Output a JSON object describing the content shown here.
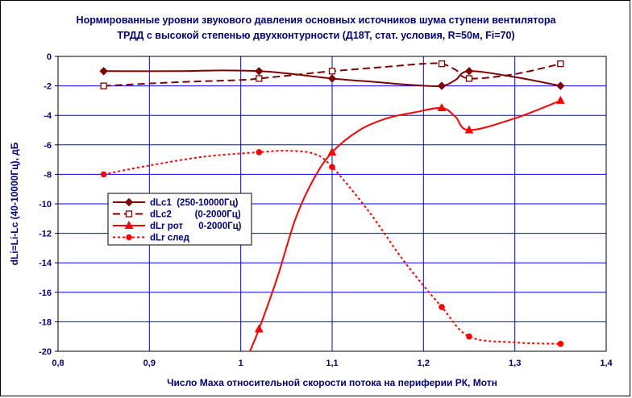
{
  "chart_data": {
    "type": "line",
    "title": "Нормированные уровни звукового давления основных источников шума ступени вентилятора",
    "subtitle": "ТРДД с высокой степенью двухконтурности  (Д18Т, стат. условия, R=50м, Fi=70)",
    "xlabel": "Число Маха относительной скорости потока на периферии РК, Мотн",
    "ylabel": "dLi=Li-Lc (40-10000Гц), дБ",
    "xlim": [
      0.8,
      1.4
    ],
    "ylim": [
      -20,
      0
    ],
    "x_ticks": [
      "0,8",
      "0,9",
      "1",
      "1,1",
      "1,2",
      "1,3",
      "1,4"
    ],
    "y_ticks": [
      "0",
      "-2",
      "-4",
      "-6",
      "-8",
      "-10",
      "-12",
      "-14",
      "-16",
      "-18",
      "-20"
    ],
    "grid": true,
    "legend_position": "middle-left",
    "series": [
      {
        "name": "dLc1  (250-10000Гц)",
        "color": "#800000",
        "line": "solid",
        "marker": "diamond",
        "markers": [
          [
            0.85,
            -1.0
          ],
          [
            1.02,
            -1.0
          ],
          [
            1.1,
            -1.5
          ],
          [
            1.22,
            -2.0
          ],
          [
            1.25,
            -1.0
          ],
          [
            1.35,
            -2.0
          ]
        ],
        "curve": [
          [
            0.85,
            -1.0
          ],
          [
            0.93,
            -1.0
          ],
          [
            0.98,
            -0.95
          ],
          [
            1.02,
            -1.0
          ],
          [
            1.05,
            -1.15
          ],
          [
            1.1,
            -1.5
          ],
          [
            1.15,
            -1.75
          ],
          [
            1.19,
            -1.95
          ],
          [
            1.22,
            -2.0
          ],
          [
            1.235,
            -1.6
          ],
          [
            1.25,
            -1.0
          ],
          [
            1.3,
            -1.4
          ],
          [
            1.35,
            -2.0
          ]
        ]
      },
      {
        "name": "dLc2         (0-2000Гц)",
        "color": "#800000",
        "line": "dashed",
        "marker": "square-open",
        "markers": [
          [
            0.85,
            -2.0
          ],
          [
            1.02,
            -1.5
          ],
          [
            1.1,
            -1.0
          ],
          [
            1.22,
            -0.5
          ],
          [
            1.25,
            -1.5
          ],
          [
            1.35,
            -0.5
          ]
        ],
        "curve": [
          [
            0.85,
            -2.0
          ],
          [
            0.93,
            -1.75
          ],
          [
            1.0,
            -1.6
          ],
          [
            1.02,
            -1.5
          ],
          [
            1.06,
            -1.25
          ],
          [
            1.1,
            -1.0
          ],
          [
            1.16,
            -0.7
          ],
          [
            1.2,
            -0.5
          ],
          [
            1.22,
            -0.5
          ],
          [
            1.235,
            -0.9
          ],
          [
            1.25,
            -1.5
          ],
          [
            1.3,
            -1.2
          ],
          [
            1.35,
            -0.5
          ]
        ]
      },
      {
        "name": "dLr рот      0-2000Гц)",
        "color": "#ff0000",
        "line": "solid",
        "marker": "triangle",
        "markers": [
          [
            1.02,
            -18.5
          ],
          [
            1.1,
            -6.5
          ],
          [
            1.22,
            -3.5
          ],
          [
            1.25,
            -5.0
          ],
          [
            1.35,
            -3.0
          ]
        ],
        "curve": [
          [
            1.01,
            -20.0
          ],
          [
            1.02,
            -18.5
          ],
          [
            1.04,
            -15.0
          ],
          [
            1.06,
            -11.0
          ],
          [
            1.08,
            -8.3
          ],
          [
            1.1,
            -6.5
          ],
          [
            1.13,
            -5.0
          ],
          [
            1.16,
            -4.2
          ],
          [
            1.19,
            -3.8
          ],
          [
            1.22,
            -3.5
          ],
          [
            1.235,
            -4.1
          ],
          [
            1.25,
            -5.0
          ],
          [
            1.3,
            -4.2
          ],
          [
            1.35,
            -3.0
          ]
        ]
      },
      {
        "name": "dLr след",
        "color": "#ff0000",
        "line": "dotted",
        "marker": "circle",
        "markers": [
          [
            0.85,
            -8.0
          ],
          [
            1.02,
            -6.5
          ],
          [
            1.1,
            -7.5
          ],
          [
            1.22,
            -17.0
          ],
          [
            1.25,
            -19.0
          ],
          [
            1.35,
            -19.5
          ]
        ],
        "curve": [
          [
            0.85,
            -8.0
          ],
          [
            0.9,
            -7.4
          ],
          [
            0.96,
            -6.8
          ],
          [
            1.02,
            -6.5
          ],
          [
            1.05,
            -6.4
          ],
          [
            1.08,
            -6.6
          ],
          [
            1.1,
            -7.5
          ],
          [
            1.14,
            -10.5
          ],
          [
            1.18,
            -14.0
          ],
          [
            1.22,
            -17.0
          ],
          [
            1.25,
            -19.0
          ],
          [
            1.3,
            -19.4
          ],
          [
            1.35,
            -19.5
          ]
        ]
      }
    ]
  }
}
